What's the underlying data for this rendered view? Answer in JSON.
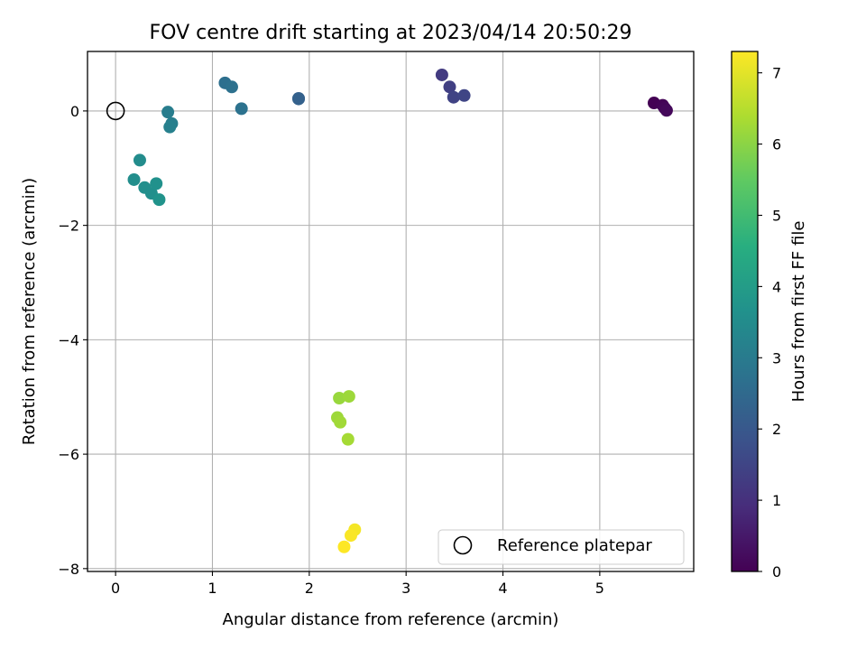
{
  "chart_data": {
    "type": "scatter",
    "title": "FOV centre drift starting at 2023/04/14 20:50:29",
    "xlabel": "Angular distance from reference (arcmin)",
    "ylabel": "Rotation from reference (arcmin)",
    "xlim": [
      -0.29,
      5.97
    ],
    "ylim": [
      -8.05,
      1.04
    ],
    "xticks": [
      0,
      1,
      2,
      3,
      4,
      5
    ],
    "yticks": [
      -8,
      -6,
      -4,
      -2,
      0
    ],
    "grid": true,
    "legend": {
      "location": "lower-right",
      "entries": [
        "Reference platepar"
      ]
    },
    "colorbar": {
      "label": "Hours from first FF file",
      "range": [
        0,
        7.3
      ],
      "ticks": [
        0,
        1,
        2,
        3,
        4,
        5,
        6,
        7
      ],
      "colormap": "viridis"
    },
    "reference_point": {
      "x": 0,
      "y": 0,
      "label": "Reference platepar"
    },
    "series": [
      {
        "points": [
          {
            "x": 5.56,
            "y": 0.14,
            "hours": 0.0
          },
          {
            "x": 5.65,
            "y": 0.1,
            "hours": 0.05
          },
          {
            "x": 5.67,
            "y": 0.05,
            "hours": 0.1
          },
          {
            "x": 5.69,
            "y": 0.01,
            "hours": 0.15
          },
          {
            "x": 3.37,
            "y": 0.63,
            "hours": 1.25
          },
          {
            "x": 3.45,
            "y": 0.42,
            "hours": 1.35
          },
          {
            "x": 3.49,
            "y": 0.24,
            "hours": 1.45
          },
          {
            "x": 3.6,
            "y": 0.27,
            "hours": 1.5
          },
          {
            "x": 1.89,
            "y": 0.22,
            "hours": 2.25
          },
          {
            "x": 1.89,
            "y": 0.21,
            "hours": 2.25
          },
          {
            "x": 1.13,
            "y": 0.49,
            "hours": 2.65
          },
          {
            "x": 1.2,
            "y": 0.42,
            "hours": 2.7
          },
          {
            "x": 1.3,
            "y": 0.04,
            "hours": 2.75
          },
          {
            "x": 0.54,
            "y": -0.02,
            "hours": 3.05
          },
          {
            "x": 0.58,
            "y": -0.22,
            "hours": 3.1
          },
          {
            "x": 0.56,
            "y": -0.28,
            "hours": 3.15
          },
          {
            "x": 0.25,
            "y": -0.86,
            "hours": 3.5
          },
          {
            "x": 0.19,
            "y": -1.2,
            "hours": 3.55
          },
          {
            "x": 0.3,
            "y": -1.34,
            "hours": 3.6
          },
          {
            "x": 0.37,
            "y": -1.44,
            "hours": 3.6
          },
          {
            "x": 0.42,
            "y": -1.27,
            "hours": 3.65
          },
          {
            "x": 0.45,
            "y": -1.55,
            "hours": 3.7
          },
          {
            "x": 2.31,
            "y": -5.02,
            "hours": 6.15
          },
          {
            "x": 2.41,
            "y": -4.99,
            "hours": 6.2
          },
          {
            "x": 2.29,
            "y": -5.36,
            "hours": 6.2
          },
          {
            "x": 2.32,
            "y": -5.44,
            "hours": 6.25
          },
          {
            "x": 2.4,
            "y": -5.74,
            "hours": 6.3
          },
          {
            "x": 2.47,
            "y": -7.32,
            "hours": 7.2
          },
          {
            "x": 2.43,
            "y": -7.42,
            "hours": 7.25
          },
          {
            "x": 2.36,
            "y": -7.62,
            "hours": 7.3
          }
        ]
      }
    ]
  }
}
